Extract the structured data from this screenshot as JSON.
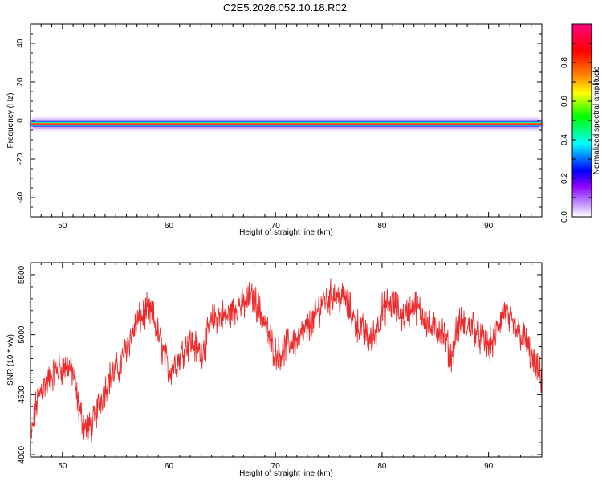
{
  "title": "C2E5.2026.052.10.18.R02",
  "chart_data": [
    {
      "type": "heatmap",
      "xlabel": "Height of straight line (km)",
      "ylabel": "Frequency (Hz)",
      "xlim": [
        47,
        95
      ],
      "ylim": [
        -50,
        50
      ],
      "x_ticks": [
        50,
        60,
        70,
        80,
        90
      ],
      "y_ticks": [
        -40,
        -20,
        0,
        20,
        40
      ],
      "ridge": {
        "x_start": 47,
        "x_end": 95,
        "frequency_start": -1.5,
        "frequency_end": -2.0
      },
      "colorbar": {
        "label": "Normalized spectral amplitude",
        "range": [
          0,
          1
        ],
        "ticks": [
          0.0,
          0.2,
          0.4,
          0.6,
          0.8
        ],
        "colors": [
          "#ffffff",
          "#8a00ff",
          "#0000ff",
          "#00ffff",
          "#00ff00",
          "#ffff00",
          "#ff7f00",
          "#ff0000",
          "#ff007f"
        ]
      }
    },
    {
      "type": "line",
      "xlabel": "Height of straight line (km)",
      "ylabel": "SNR (10 * v/v)",
      "xlim": [
        47,
        95
      ],
      "ylim": [
        3980,
        5600
      ],
      "x_ticks": [
        50,
        60,
        70,
        80,
        90
      ],
      "y_ticks": [
        4000,
        4500,
        5000,
        5500
      ],
      "color": "#ee2a2a",
      "series": [
        {
          "x": [
            47,
            47.5,
            48,
            48.5,
            49,
            49.5,
            50,
            50.5,
            51,
            51.5,
            52,
            52.5,
            53,
            53.5,
            54,
            54.5,
            55,
            55.5,
            56,
            56.5,
            57,
            57.5,
            58,
            58.5,
            59,
            59.5,
            60,
            60.5,
            61,
            61.5,
            62,
            62.5,
            63,
            63.5,
            64,
            64.5,
            65,
            65.5,
            66,
            66.5,
            67,
            67.5,
            68,
            68.5,
            69,
            69.5,
            70,
            70.5,
            71,
            71.5,
            72,
            72.5,
            73,
            73.5,
            74,
            74.5,
            75,
            75.5,
            76,
            76.5,
            77,
            77.5,
            78,
            78.5,
            79,
            79.5,
            80,
            80.5,
            81,
            81.5,
            82,
            82.5,
            83,
            83.5,
            84,
            84.5,
            85,
            85.5,
            86,
            86.5,
            87,
            87.5,
            88,
            88.5,
            89,
            89.5,
            90,
            90.5,
            91,
            91.5,
            92,
            92.5,
            93,
            93.5,
            94,
            94.5,
            95
          ],
          "values": [
            4100,
            4400,
            4550,
            4600,
            4650,
            4700,
            4720,
            4750,
            4680,
            4400,
            4250,
            4220,
            4280,
            4450,
            4550,
            4650,
            4700,
            4750,
            4900,
            5000,
            5100,
            5150,
            5200,
            5150,
            5000,
            4850,
            4700,
            4750,
            4800,
            4900,
            4950,
            4900,
            4850,
            4950,
            5100,
            5150,
            5150,
            5150,
            5200,
            5250,
            5250,
            5300,
            5300,
            5200,
            5100,
            4950,
            4850,
            4850,
            4900,
            4950,
            4950,
            5000,
            5050,
            5100,
            5200,
            5300,
            5300,
            5350,
            5300,
            5300,
            5200,
            5100,
            5050,
            5000,
            4950,
            5050,
            5200,
            5250,
            5250,
            5200,
            5150,
            5200,
            5250,
            5200,
            5150,
            5050,
            5050,
            5050,
            4950,
            4800,
            5050,
            5100,
            5050,
            5100,
            5000,
            4950,
            4900,
            4950,
            5100,
            5200,
            5100,
            5050,
            5000,
            4950,
            4800,
            4700,
            4650
          ]
        }
      ]
    }
  ]
}
